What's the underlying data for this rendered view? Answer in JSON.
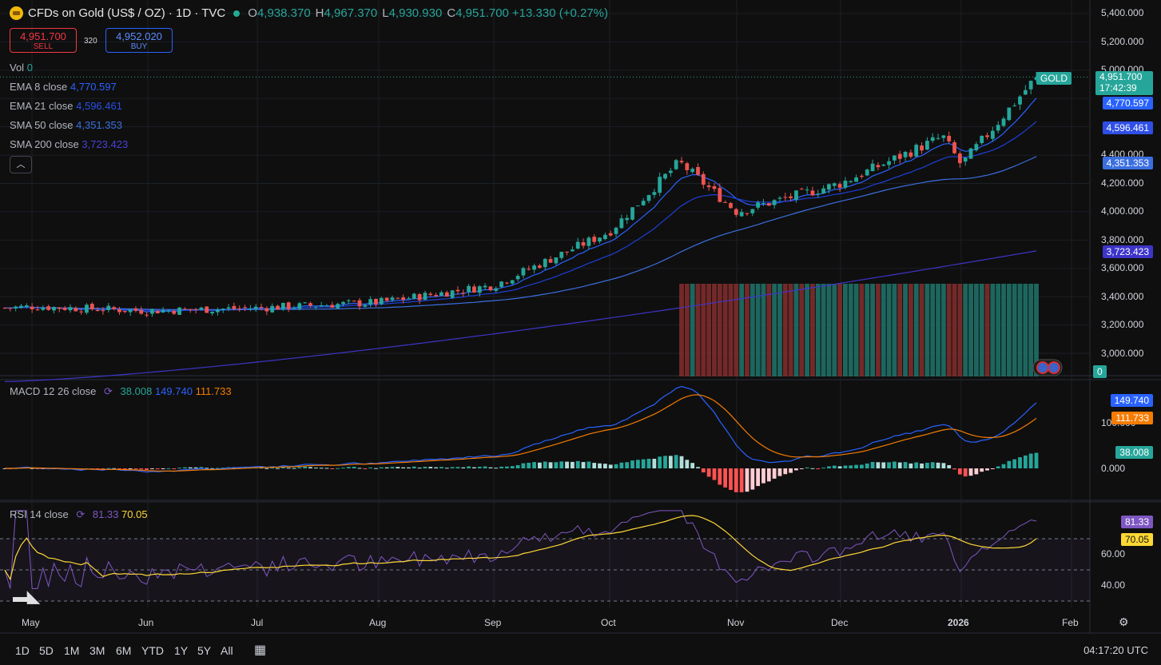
{
  "header": {
    "title": "CFDs on Gold (US$ / OZ) · 1D · TVC",
    "ohlc": [
      {
        "key": "O",
        "value": "4,938.370"
      },
      {
        "key": "H",
        "value": "4,967.370"
      },
      {
        "key": "L",
        "value": "4,930.930"
      },
      {
        "key": "C",
        "value": "4,951.700"
      }
    ],
    "change": "+13.330 (+0.27%)"
  },
  "trade": {
    "sell_price": "4,951.700",
    "sell_label": "SELL",
    "spread": "320",
    "buy_price": "4,952.020",
    "buy_label": "BUY"
  },
  "indicators": {
    "vol": {
      "label": "Vol",
      "value": "0"
    },
    "ema8": {
      "label": "EMA 8 close",
      "value": "4,770.597"
    },
    "ema21": {
      "label": "EMA 21 close",
      "value": "4,596.461"
    },
    "sma50": {
      "label": "SMA 50 close",
      "value": "4,351.353"
    },
    "sma200": {
      "label": "SMA 200 close",
      "value": "3,723.423"
    },
    "macd": {
      "label": "MACD 12 26 close",
      "hist": "38.008",
      "macd": "149.740",
      "signal": "111.733"
    },
    "rsi": {
      "label": "RSI 14 close",
      "rsi": "81.33",
      "ma": "70.05"
    }
  },
  "price_tags": {
    "symbol": "GOLD",
    "last": "4,951.700",
    "countdown": "17:42:39",
    "ema8": "4,770.597",
    "ema21": "4,596.461",
    "sma50": "4,351.353",
    "sma200": "3,723.423",
    "vol": "0",
    "macd": "149.740",
    "signal": "111.733",
    "hist": "38.008",
    "rsi": "81.33",
    "rsi_ma": "70.05"
  },
  "price_axis": [
    "5,400.000",
    "5,200.000",
    "5,000.000",
    "4,400.000",
    "4,200.000",
    "4,000.000",
    "3,800.000",
    "3,600.000",
    "3,400.000",
    "3,200.000",
    "3,000.000"
  ],
  "macd_axis": [
    "100.000",
    "0.000"
  ],
  "rsi_axis": [
    "60.00",
    "40.00"
  ],
  "time_axis": [
    "May",
    "Jun",
    "Jul",
    "Aug",
    "Sep",
    "Oct",
    "Nov",
    "Dec",
    "2026",
    "Feb"
  ],
  "ranges": [
    "1D",
    "5D",
    "1M",
    "3M",
    "6M",
    "YTD",
    "1Y",
    "5Y",
    "All"
  ],
  "clock": "04:17:20 UTC",
  "colors": {
    "up": "#26a69a",
    "down": "#ef5350",
    "ema8": "#2962ff",
    "ema21": "#1e3fd6",
    "sma50": "#3b6fe0",
    "sma200": "#3d35c8",
    "macd": "#2962ff",
    "signal": "#f57c00",
    "rsi": "#7e57c2",
    "rsi_ma": "#fdd835"
  },
  "chart_data": {
    "type": "candlestick",
    "ylim": [
      2850,
      5400
    ],
    "x": [
      "2025-04-28",
      "2026-01-21"
    ],
    "anchors": [
      {
        "date": "May",
        "close": 3330
      },
      {
        "date": "Jun",
        "close": 3300
      },
      {
        "date": "Jul",
        "close": 3320
      },
      {
        "date": "Aug",
        "close": 3360
      },
      {
        "date": "Sep",
        "close": 3480
      },
      {
        "date": "Oct",
        "close": 3860
      },
      {
        "date": "Oct 20",
        "close": 4350
      },
      {
        "date": "Nov",
        "close": 4000
      },
      {
        "date": "Dec",
        "close": 4200
      },
      {
        "date": "Dec 26",
        "close": 4530
      },
      {
        "date": "2026",
        "close": 4330
      },
      {
        "date": "Jan 21",
        "close": 4951.7
      }
    ],
    "series": [
      {
        "name": "EMA 8 close",
        "last": 4770.597
      },
      {
        "name": "EMA 21 close",
        "last": 4596.461
      },
      {
        "name": "SMA 50 close",
        "last": 4351.353
      },
      {
        "name": "SMA 200 close",
        "last": 3723.423
      },
      {
        "name": "MACD",
        "last": 149.74
      },
      {
        "name": "Signal",
        "last": 111.733
      },
      {
        "name": "Histogram",
        "last": 38.008
      },
      {
        "name": "RSI",
        "last": 81.33
      },
      {
        "name": "RSI MA",
        "last": 70.05
      }
    ]
  }
}
